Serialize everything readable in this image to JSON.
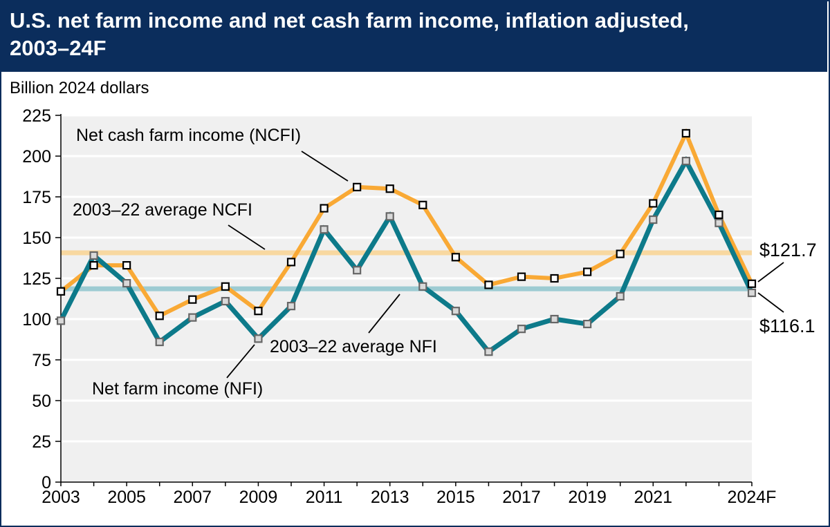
{
  "chart_data": {
    "type": "line",
    "title": "U.S. net farm income and net cash farm income, inflation adjusted, 2003–24F",
    "ylabel": "Billion 2024 dollars",
    "xlabel": "",
    "ylim": [
      0,
      225
    ],
    "yticks": [
      0,
      25,
      50,
      75,
      100,
      125,
      150,
      175,
      200,
      225
    ],
    "x": [
      2003,
      2004,
      2005,
      2006,
      2007,
      2008,
      2009,
      2010,
      2011,
      2012,
      2013,
      2014,
      2015,
      2016,
      2017,
      2018,
      2019,
      2020,
      2021,
      2022,
      2023,
      2024
    ],
    "xtick_labels": [
      {
        "x": 2003,
        "label": "2003"
      },
      {
        "x": 2005,
        "label": "2005"
      },
      {
        "x": 2007,
        "label": "2007"
      },
      {
        "x": 2009,
        "label": "2009"
      },
      {
        "x": 2011,
        "label": "2011"
      },
      {
        "x": 2013,
        "label": "2013"
      },
      {
        "x": 2015,
        "label": "2015"
      },
      {
        "x": 2017,
        "label": "2017"
      },
      {
        "x": 2019,
        "label": "2019"
      },
      {
        "x": 2021,
        "label": "2021"
      },
      {
        "x": 2024,
        "label": "2024F"
      }
    ],
    "grid": "horizontal",
    "series": [
      {
        "name": "Net cash farm income (NCFI)",
        "color": "#f9a935",
        "marker_fill": "#ffffff",
        "marker_stroke": "#000000",
        "values": [
          117,
          133,
          133,
          102,
          112,
          120,
          105,
          135,
          168,
          181,
          180,
          170,
          138,
          121,
          126,
          125,
          129,
          140,
          171,
          214,
          164,
          121.7
        ]
      },
      {
        "name": "Net farm income (NFI)",
        "color": "#0d7a8a",
        "marker_fill": "#d9d9d9",
        "marker_stroke": "#666666",
        "values": [
          99,
          139,
          122,
          86,
          101,
          111,
          88,
          108,
          155,
          130,
          163,
          120,
          105,
          80,
          94,
          100,
          97,
          114,
          161,
          197,
          159,
          116.1
        ]
      }
    ],
    "reference_lines": [
      {
        "name": "2003–22 average NCFI",
        "value": 140.7,
        "color": "#f8d8a0"
      },
      {
        "name": "2003–22 average NFI",
        "value": 118.6,
        "color": "#9dcbd2"
      }
    ],
    "end_labels": {
      "ncfi": "$121.7",
      "nfi": "$116.1"
    },
    "plot_background": "#f0f0f0"
  }
}
